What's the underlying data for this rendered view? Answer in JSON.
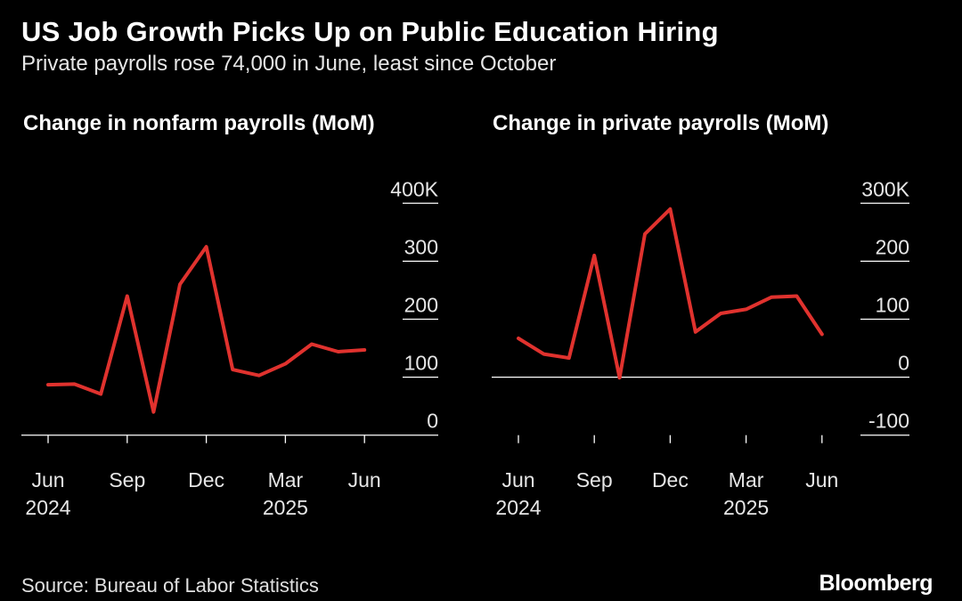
{
  "header": {
    "title": "US Job Growth Picks Up on Public Education Hiring",
    "subtitle": "Private payrolls rose 74,000 in June, least since October"
  },
  "footer": {
    "source": "Source: Bureau of Labor Statistics",
    "brand": "Bloomberg"
  },
  "colors": {
    "line": "#e0322e",
    "background": "#000000",
    "text": "#ffffff"
  },
  "chart_data": [
    {
      "type": "line",
      "title": "Change in nonfarm payrolls (MoM)",
      "x": [
        "2024-06",
        "2024-07",
        "2024-08",
        "2024-09",
        "2024-10",
        "2024-11",
        "2024-12",
        "2025-01",
        "2025-02",
        "2025-03",
        "2025-04",
        "2025-05",
        "2025-06"
      ],
      "x_ticks": [
        {
          "month": "2024-06",
          "label": "Jun",
          "year": "2024"
        },
        {
          "month": "2024-09",
          "label": "Sep",
          "year": ""
        },
        {
          "month": "2024-12",
          "label": "Dec",
          "year": ""
        },
        {
          "month": "2025-03",
          "label": "Mar",
          "year": "2025"
        },
        {
          "month": "2025-06",
          "label": "Jun",
          "year": ""
        }
      ],
      "series": [
        {
          "values": [
            87,
            88,
            71,
            240,
            40,
            260,
            325,
            113,
            103,
            123,
            157,
            144,
            147
          ]
        }
      ],
      "ylim": [
        -25,
        425
      ],
      "y_ticks": [
        {
          "value": 400,
          "label": "400K"
        },
        {
          "value": 300,
          "label": "300"
        },
        {
          "value": 200,
          "label": "200"
        },
        {
          "value": 100,
          "label": "100"
        },
        {
          "value": 0,
          "label": "0"
        }
      ],
      "baseline": 0,
      "grid": false
    },
    {
      "type": "line",
      "title": "Change in private payrolls (MoM)",
      "x": [
        "2024-06",
        "2024-07",
        "2024-08",
        "2024-09",
        "2024-10",
        "2024-11",
        "2024-12",
        "2025-01",
        "2025-02",
        "2025-03",
        "2025-04",
        "2025-05",
        "2025-06"
      ],
      "x_ticks": [
        {
          "month": "2024-06",
          "label": "Jun",
          "year": "2024"
        },
        {
          "month": "2024-09",
          "label": "Sep",
          "year": ""
        },
        {
          "month": "2024-12",
          "label": "Dec",
          "year": ""
        },
        {
          "month": "2025-03",
          "label": "Mar",
          "year": "2025"
        },
        {
          "month": "2025-06",
          "label": "Jun",
          "year": ""
        }
      ],
      "series": [
        {
          "values": [
            67,
            40,
            33,
            210,
            -1,
            247,
            290,
            78,
            110,
            117,
            138,
            140,
            74
          ]
        }
      ],
      "ylim": [
        -125,
        325
      ],
      "y_ticks": [
        {
          "value": 300,
          "label": "300K"
        },
        {
          "value": 200,
          "label": "200"
        },
        {
          "value": 100,
          "label": "100"
        },
        {
          "value": 0,
          "label": "0"
        },
        {
          "value": -100,
          "label": "-100"
        }
      ],
      "baseline": 0,
      "grid": false
    }
  ]
}
